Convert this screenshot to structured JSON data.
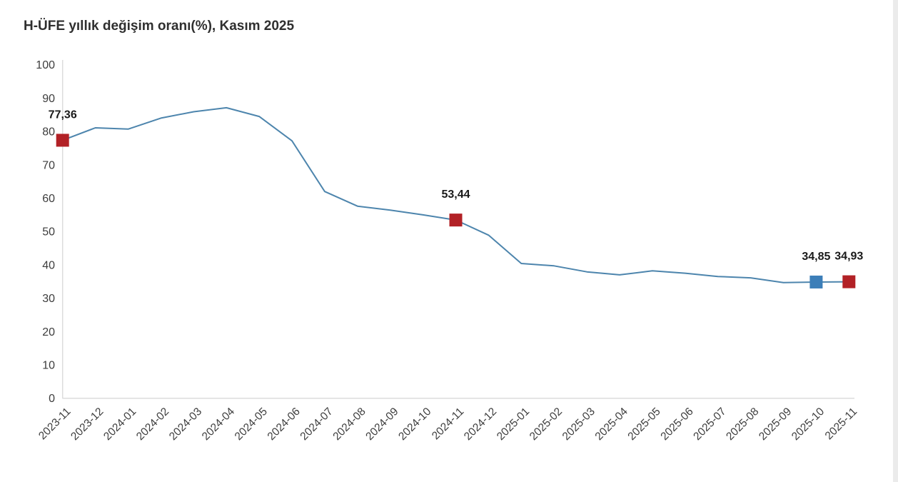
{
  "header": {
    "title": "H-ÜFE yıllık değişim oranı(%), Kasım 2025"
  },
  "chart_data": {
    "type": "line",
    "title": "H-ÜFE yıllık değişim oranı(%), Kasım 2025",
    "xlabel": "",
    "ylabel": "",
    "ylim": [
      0,
      100
    ],
    "ytick_step": 10,
    "grid": false,
    "legend": false,
    "categories": [
      "2023-11",
      "2023-12",
      "2024-01",
      "2024-02",
      "2024-03",
      "2024-04",
      "2024-05",
      "2024-06",
      "2024-07",
      "2024-08",
      "2024-09",
      "2024-10",
      "2024-11",
      "2024-12",
      "2025-01",
      "2025-02",
      "2025-03",
      "2025-04",
      "2025-05",
      "2025-06",
      "2025-07",
      "2025-08",
      "2025-09",
      "2025-10",
      "2025-11"
    ],
    "values": [
      77.36,
      81.1,
      80.7,
      84.0,
      85.9,
      87.1,
      84.5,
      77.2,
      62.0,
      57.6,
      56.4,
      55.0,
      53.44,
      48.9,
      40.4,
      39.7,
      37.9,
      37.0,
      38.2,
      37.5,
      36.5,
      36.1,
      34.7,
      34.85,
      34.93
    ],
    "marked_points": [
      {
        "category": "2023-11",
        "value": 77.36,
        "label": "77,36",
        "color": "#b22126"
      },
      {
        "category": "2024-11",
        "value": 53.44,
        "label": "53,44",
        "color": "#b22126"
      },
      {
        "category": "2025-10",
        "value": 34.85,
        "label": "34,85",
        "color": "#3c7eb8"
      },
      {
        "category": "2025-11",
        "value": 34.93,
        "label": "34,93",
        "color": "#b22126"
      }
    ],
    "colors": {
      "line": "#4d85ad",
      "axis": "#dcdcdc",
      "tick_label": "#3d3d3d",
      "data_label": "#1a1a1a",
      "marker_red": "#b22126",
      "marker_blue": "#3c7eb8"
    }
  }
}
